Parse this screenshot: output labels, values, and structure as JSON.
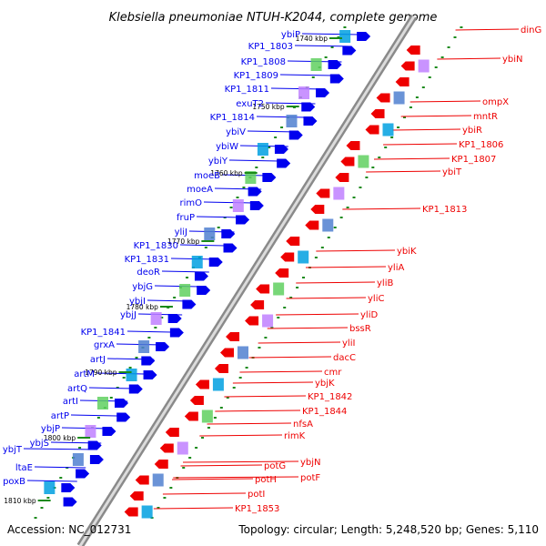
{
  "title": "Klebsiella pneumoniae NTUH-K2044, complete genome",
  "accession": "Accession: NC_012731",
  "summary": "Topology: circular; Length: 5,248,520 bp; Genes: 5,110",
  "colors": {
    "forward": "#0000ee",
    "reverse": "#ee0000",
    "backbone": "#888888",
    "tick": "#1a8a1a"
  },
  "kbp_ticks": [
    "1740 kbp",
    "1750 kbp",
    "1760 kbp",
    "1770 kbp",
    "1780 kbp",
    "1790 kbp",
    "1800 kbp",
    "1810 kbp"
  ],
  "forward_genes": [
    "ybiP",
    "KP1_1803",
    "KP1_1808",
    "KP1_1809",
    "KP1_1811",
    "exuT2",
    "KP1_1814",
    "ybiV",
    "ybiW",
    "ybiY",
    "moeB",
    "moeA",
    "rimO",
    "fruP",
    "yliJ",
    "KP1_1830",
    "KP1_1831",
    "deoR",
    "ybjG",
    "ybjI",
    "ybjJ",
    "KP1_1841",
    "grxA",
    "artJ",
    "artM",
    "artQ",
    "artI",
    "artP",
    "ybjP",
    "ybjS",
    "ybjT",
    "ltaE",
    "poxB"
  ],
  "reverse_genes": [
    "dinG",
    "ybiN",
    "ompX",
    "mntR",
    "ybiR",
    "KP1_1806",
    "KP1_1807",
    "ybiT",
    "KP1_1813",
    "ybiK",
    "yliA",
    "yliB",
    "yliC",
    "yliD",
    "bssR",
    "yliI",
    "dacC",
    "cmr",
    "ybjK",
    "KP1_1842",
    "KP1_1844",
    "nfsA",
    "rimK",
    "ybjN",
    "potF",
    "potG",
    "potH",
    "potI",
    "KP1_1853"
  ]
}
